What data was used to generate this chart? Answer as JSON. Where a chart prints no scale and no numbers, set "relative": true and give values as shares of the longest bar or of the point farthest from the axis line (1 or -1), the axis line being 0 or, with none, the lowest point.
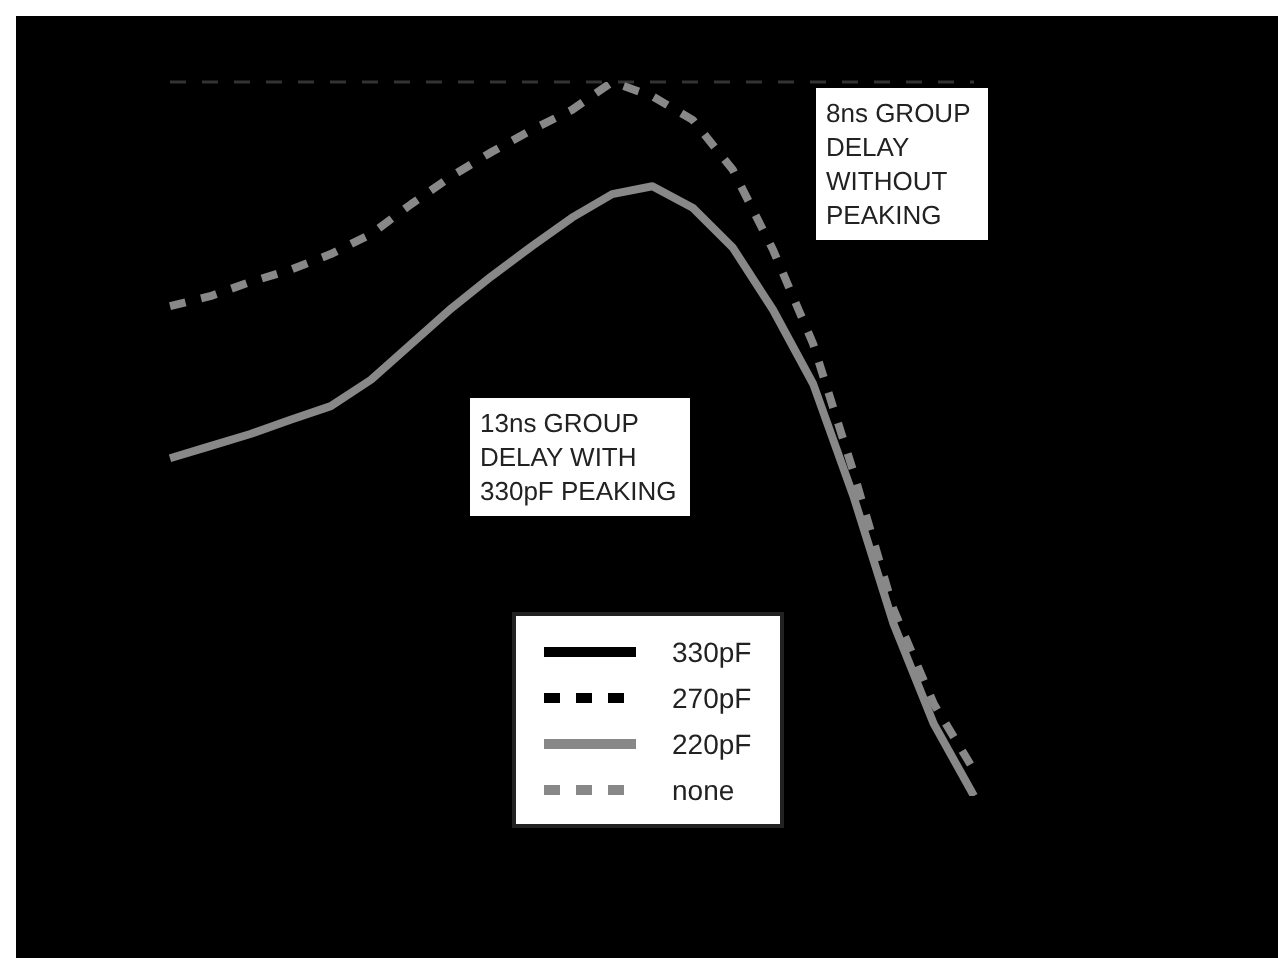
{
  "chart_data": {
    "type": "line",
    "relative": true,
    "tick_labels": false,
    "grid": false,
    "legend": "bottom",
    "categories": [
      null,
      null,
      null,
      null,
      null,
      null,
      null,
      null,
      null,
      null,
      null,
      null,
      null,
      null,
      null,
      null,
      null,
      null,
      null,
      null,
      null
    ],
    "series": [
      {
        "name": "330pF",
        "color": "#000000",
        "line_style": "solid",
        "values": [
          null,
          null,
          null,
          null,
          null,
          null,
          null,
          null,
          null,
          null,
          null,
          null,
          null,
          null,
          null,
          null,
          null,
          null,
          null,
          null,
          null
        ]
      },
      {
        "name": "270pF",
        "color": "#000000",
        "line_style": "dashed",
        "values": [
          null,
          null,
          null,
          null,
          null,
          null,
          null,
          null,
          null,
          null,
          null,
          null,
          null,
          null,
          null,
          null,
          null,
          null,
          null,
          null,
          null
        ]
      },
      {
        "name": "220pF",
        "color": "#888888",
        "line_style": "solid",
        "values": [
          0.473,
          0.49,
          0.507,
          0.527,
          0.546,
          0.583,
          0.633,
          0.683,
          0.728,
          0.77,
          0.81,
          0.843,
          0.854,
          0.824,
          0.768,
          0.681,
          0.577,
          0.42,
          0.241,
          0.101,
          0
        ]
      },
      {
        "name": "none",
        "color": "#888888",
        "line_style": "dashed",
        "values": [
          0.686,
          0.7,
          0.72,
          0.737,
          0.759,
          0.787,
          0.829,
          0.868,
          0.902,
          0.933,
          0.961,
          1,
          0.98,
          0.947,
          0.877,
          0.765,
          0.633,
          0.454,
          0.261,
          0.129,
          0.036
        ]
      }
    ],
    "ref_lines": [
      {
        "axis": "y",
        "value": 1,
        "color": "#333333",
        "line_style": "dashed"
      }
    ],
    "annotations": [
      "8ns GROUP DELAY WITHOUT PEAKING",
      "13ns GROUP DELAY WITH 330pF PEAKING"
    ]
  }
}
